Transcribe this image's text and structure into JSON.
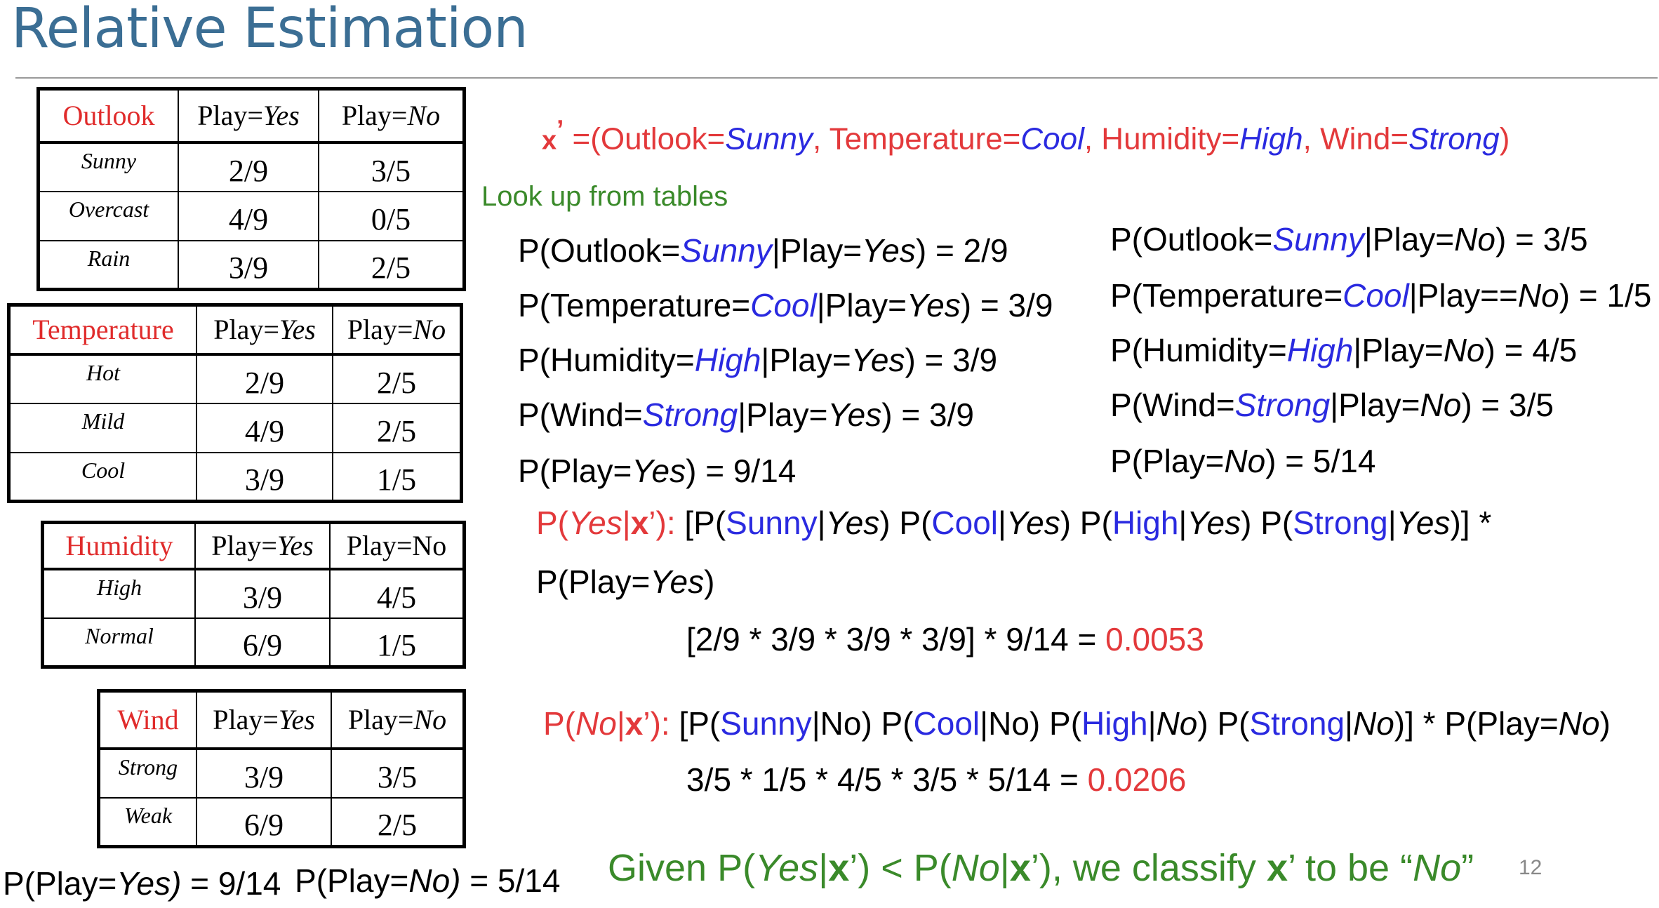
{
  "title": "Relative Estimation",
  "tables": {
    "outlook": {
      "attr": "Outlook",
      "col_yes_pre": "Play=",
      "col_yes": "Yes",
      "col_no_pre": "Play=",
      "col_no": "No",
      "rows": [
        {
          "label": "Sunny",
          "yes": "2/9",
          "no": "3/5"
        },
        {
          "label": "Overcast",
          "yes": "4/9",
          "no": "0/5"
        },
        {
          "label": "Rain",
          "yes": "3/9",
          "no": "2/5"
        }
      ]
    },
    "temperature": {
      "attr": "Temperature",
      "col_yes_pre": "Play=",
      "col_yes": "Yes",
      "col_no_pre": "Play=",
      "col_no": "No",
      "rows": [
        {
          "label": "Hot",
          "yes": "2/9",
          "no": "2/5"
        },
        {
          "label": "Mild",
          "yes": "4/9",
          "no": "2/5"
        },
        {
          "label": "Cool",
          "yes": "3/9",
          "no": "1/5"
        }
      ]
    },
    "humidity": {
      "attr": "Humidity",
      "col_yes_pre": "Play=",
      "col_yes": "Yes",
      "col_no": "Play=No",
      "rows": [
        {
          "label": "High",
          "yes": "3/9",
          "no": "4/5"
        },
        {
          "label": "Normal",
          "yes": "6/9",
          "no": "1/5"
        }
      ]
    },
    "wind": {
      "attr": "Wind",
      "col_yes_pre": "Play=",
      "col_yes": "Yes",
      "col_no_pre": "Play=",
      "col_no": "No",
      "rows": [
        {
          "label": "Strong",
          "yes": "3/9",
          "no": "3/5"
        },
        {
          "label": "Weak",
          "yes": "6/9",
          "no": "2/5"
        }
      ]
    }
  },
  "priors_bottom": {
    "yes": {
      "a": "P(Play=",
      "b": "Yes)",
      "c": " = 9/14"
    },
    "no": {
      "a": "P(Play=",
      "b": "No)",
      "c": " = 5/14"
    }
  },
  "x_def": {
    "x": "x",
    "prime": "’",
    "open": " =(Outlook=",
    "v1": "Sunny",
    "s1": ", Temperature=",
    "v2": "Cool",
    "s2": ", Humidity=",
    "v3": "High",
    "s3": ", Wind=",
    "v4": "Strong",
    "close": ")"
  },
  "lookup_label": "Look up from tables",
  "left_probs": [
    {
      "a": "P(Outlook=",
      "v": "Sunny",
      "b": "|Play=",
      "c": "Yes",
      "d": ") = 2/9"
    },
    {
      "a": "P(Temperature=",
      "v": "Cool",
      "b": "|Play=",
      "c": "Yes",
      "d": ") = 3/9"
    },
    {
      "a": "P(Humidity=",
      "v": "High",
      "b": "|Play=",
      "c": "Yes",
      "d": ") = 3/9"
    },
    {
      "a": "P(Wind=",
      "v": "Strong",
      "b": "|Play=",
      "c": "Yes",
      "d": ") = 3/9"
    },
    {
      "a": "P(Play=",
      "c": "Yes",
      "d": ") = 9/14"
    }
  ],
  "right_probs": [
    {
      "a": "P(Outlook=",
      "v": "Sunny",
      "b": "|Play=",
      "c": "No",
      "d": ") = 3/5"
    },
    {
      "a": "P(Temperature=",
      "v": "Cool",
      "b": "|Play==",
      "c": "No",
      "d": ") = 1/5"
    },
    {
      "a": "P(Humidity=",
      "v": "High",
      "b": "|Play=",
      "c": "No",
      "d": ") = 4/5"
    },
    {
      "a": "P(Wind=",
      "v": "Strong",
      "b": "|Play=",
      "c": "No",
      "d": ") = 3/5"
    },
    {
      "a": "P(Play=",
      "c": "No",
      "d": ") = 5/14"
    }
  ],
  "yes_calc": {
    "lbl_a": "P(",
    "lbl_b": "Yes",
    "lbl_c": "|",
    "lbl_x": "x",
    "lbl_d": "’):",
    "formula": [
      {
        "t": " [P(",
        "s": ""
      },
      {
        "t": "Sunny",
        "s": "blue"
      },
      {
        "t": "|",
        "s": ""
      },
      {
        "t": "Yes",
        "s": "it"
      },
      {
        "t": ") P(",
        "s": ""
      },
      {
        "t": "Cool",
        "s": "blue"
      },
      {
        "t": "|",
        "s": ""
      },
      {
        "t": "Yes",
        "s": "it"
      },
      {
        "t": ") P(",
        "s": ""
      },
      {
        "t": "High",
        "s": "blue"
      },
      {
        "t": "|",
        "s": ""
      },
      {
        "t": "Yes",
        "s": "it"
      },
      {
        "t": ") P(",
        "s": ""
      },
      {
        "t": "Strong",
        "s": "blue"
      },
      {
        "t": "|",
        "s": ""
      },
      {
        "t": "Yes",
        "s": "it"
      },
      {
        "t": ")] *",
        "s": ""
      }
    ],
    "line2_a": "P(Play=",
    "line2_b": "Yes",
    "line2_c": ")",
    "numeric": "[2/9 * 3/9 * 3/9 * 3/9] * 9/14 = ",
    "result": "0.0053"
  },
  "no_calc": {
    "lbl_a": "P(",
    "lbl_b": "No",
    "lbl_c": "|",
    "lbl_x": "x",
    "lbl_d": "’):",
    "formula": [
      {
        "t": " [P(",
        "s": ""
      },
      {
        "t": "Sunny",
        "s": "blue"
      },
      {
        "t": "|No) P(",
        "s": ""
      },
      {
        "t": "Cool",
        "s": "blue"
      },
      {
        "t": "|No) P(",
        "s": ""
      },
      {
        "t": "High",
        "s": "blue"
      },
      {
        "t": "|",
        "s": ""
      },
      {
        "t": "No",
        "s": "it"
      },
      {
        "t": ") P(",
        "s": ""
      },
      {
        "t": "Strong",
        "s": "blue"
      },
      {
        "t": "|",
        "s": ""
      },
      {
        "t": "No",
        "s": "it"
      },
      {
        "t": ")] * P(Play=",
        "s": ""
      },
      {
        "t": "No",
        "s": "it"
      },
      {
        "t": ")",
        "s": ""
      }
    ],
    "numeric": "3/5 * 1/5 * 4/5 * 3/5 * 5/14 =  ",
    "result": "0.0206"
  },
  "conclusion": [
    {
      "t": "Given  P(",
      "s": ""
    },
    {
      "t": "Yes",
      "s": "it"
    },
    {
      "t": "|",
      "s": ""
    },
    {
      "t": "x",
      "s": "b"
    },
    {
      "t": "’) < P(",
      "s": ""
    },
    {
      "t": "No",
      "s": "it"
    },
    {
      "t": "|",
      "s": ""
    },
    {
      "t": "x",
      "s": "b"
    },
    {
      "t": "’), we classify ",
      "s": ""
    },
    {
      "t": "x",
      "s": "b"
    },
    {
      "t": "’ to be “",
      "s": ""
    },
    {
      "t": "No",
      "s": "it"
    },
    {
      "t": "”",
      "s": ""
    }
  ],
  "page_number": "12",
  "colors": {
    "title": "#3b6e94",
    "red": "#e3393b",
    "blue": "#2a2ae0",
    "green": "#3a8a2a"
  }
}
